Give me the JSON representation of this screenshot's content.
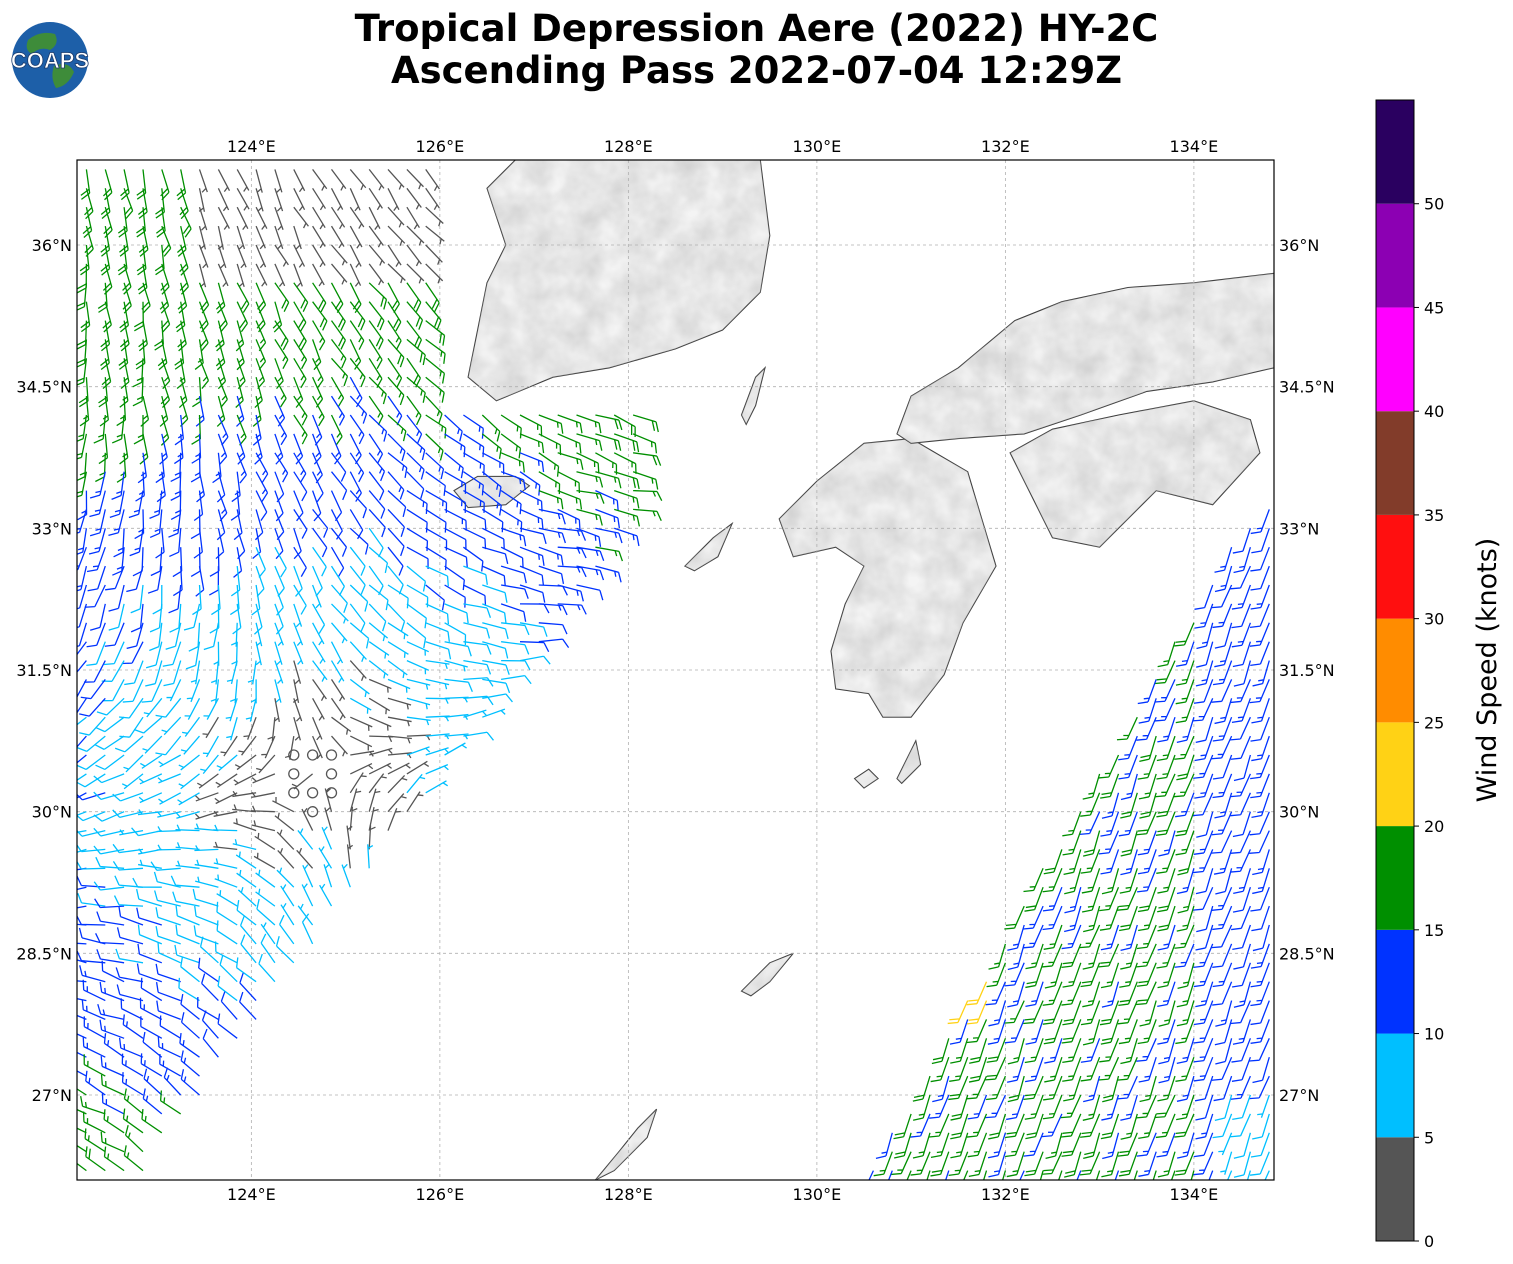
{
  "header": {
    "title_line1": "Tropical Depression Aere (2022) HY-2C",
    "title_line2": "Ascending Pass 2022-07-04 12:29Z"
  },
  "logo": {
    "text": "COAPS",
    "icon": "globe-logo-icon"
  },
  "map": {
    "lon_range": [
      122.15,
      134.85
    ],
    "lat_range": [
      26.1,
      36.9
    ],
    "lon_ticks": [
      "124°E",
      "126°E",
      "128°E",
      "130°E",
      "132°E",
      "134°E"
    ],
    "lon_tick_values": [
      124,
      126,
      128,
      130,
      132,
      134
    ],
    "lat_ticks": [
      "27°N",
      "28.5°N",
      "30°N",
      "31.5°N",
      "33°N",
      "34.5°N",
      "36°N"
    ],
    "lat_tick_values": [
      27,
      28.5,
      30,
      31.5,
      33,
      34.5,
      36
    ],
    "gridlines": true,
    "land_color": "#f2f2f2",
    "coastline_color": "#333333"
  },
  "colorbar": {
    "label": "Wind Speed (knots)",
    "tick_labels": [
      "0",
      "5",
      "10",
      "15",
      "20",
      "25",
      "30",
      "35",
      "40",
      "45",
      "50"
    ],
    "bins": [
      {
        "min": 0,
        "max": 5,
        "color": "#555555"
      },
      {
        "min": 5,
        "max": 10,
        "color": "#00bfff"
      },
      {
        "min": 10,
        "max": 15,
        "color": "#0033ff"
      },
      {
        "min": 15,
        "max": 20,
        "color": "#008f00"
      },
      {
        "min": 20,
        "max": 25,
        "color": "#ffd215"
      },
      {
        "min": 25,
        "max": 30,
        "color": "#ff8c00"
      },
      {
        "min": 30,
        "max": 35,
        "color": "#ff0f0f"
      },
      {
        "min": 35,
        "max": 40,
        "color": "#823c2a"
      },
      {
        "min": 40,
        "max": 45,
        "color": "#ff00ff"
      },
      {
        "min": 45,
        "max": 50,
        "color": "#8c00b3"
      },
      {
        "min": 50,
        "max": 55,
        "color": "#2a0060"
      }
    ]
  },
  "chart_data": {
    "type": "scatter",
    "description": "HY-2C scatterometer wind barbs",
    "swaths": [
      {
        "name": "west swath",
        "lon_range": [
          122.15,
          128.0
        ],
        "lat_range": [
          26.1,
          36.9
        ],
        "speeds_kt": "0-20",
        "calm_area_center": [
          124.7,
          30.4
        ]
      },
      {
        "name": "east swath",
        "lon_range": [
          130.6,
          134.85
        ],
        "lat_range": [
          26.1,
          33.2
        ],
        "speeds_kt": "5-25"
      }
    ]
  }
}
